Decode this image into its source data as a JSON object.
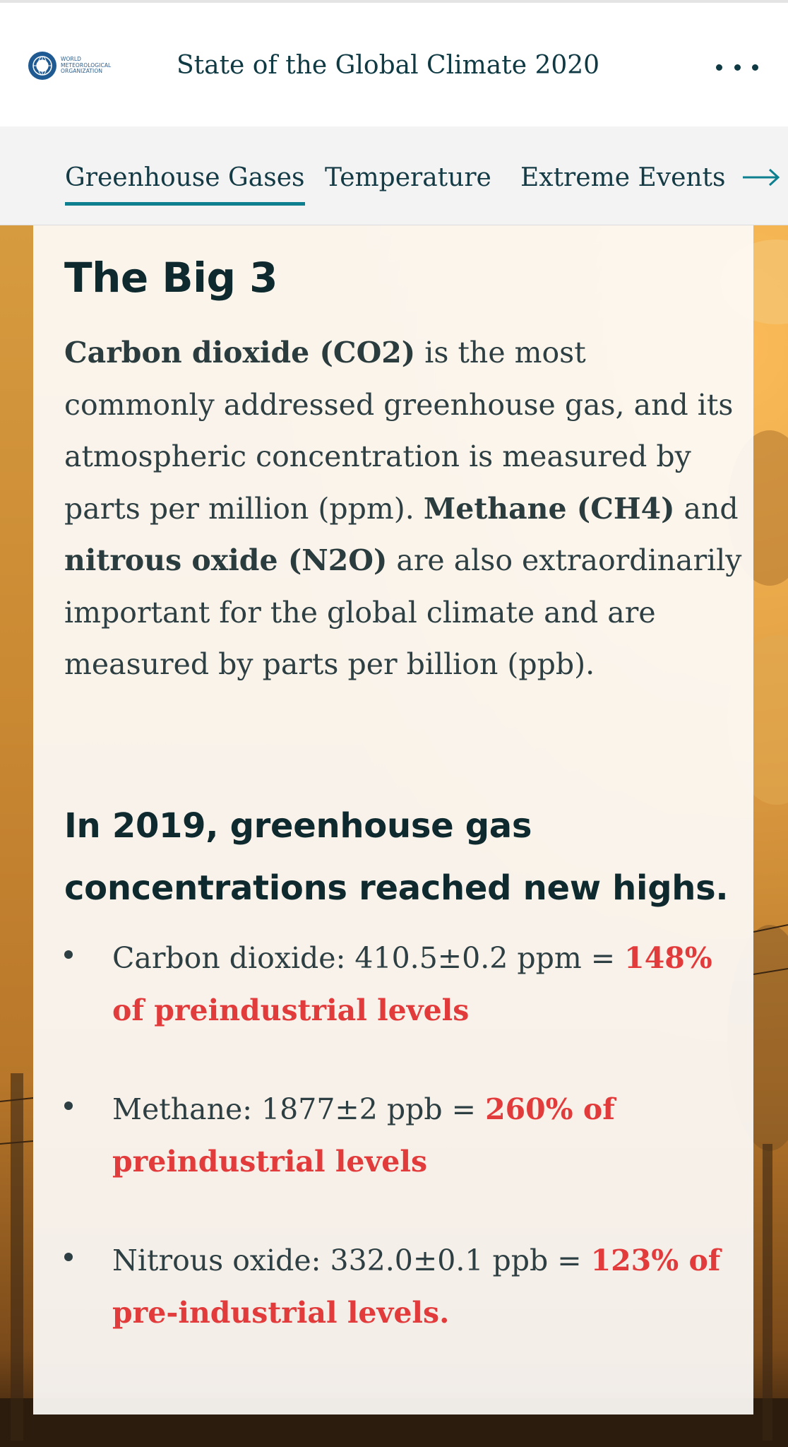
{
  "header": {
    "logo_text": "WORLD\nMETEOROLOGICAL\nORGANIZATION",
    "site_title": "State of the Global Climate 2020"
  },
  "tabs": [
    {
      "label": "Greenhouse Gases",
      "active": true
    },
    {
      "label": "Temperature",
      "active": false
    },
    {
      "label": "Extreme Events",
      "active": false
    }
  ],
  "card": {
    "heading": "The Big 3",
    "intro": {
      "co2_term": "Carbon dioxide (CO2)",
      "part1": " is the most commonly addressed greenhouse gas, and its atmospheric concentration is measured by parts per million (ppm). ",
      "ch4_term": "Methane (CH4)",
      "part2": " and ",
      "n2o_term": "nitrous oxide (N2O)",
      "part3": " are also extraordinarily important for the global climate and are measured by parts per billion (ppb)."
    },
    "subheading": "In 2019, greenhouse gas concentrations reached new highs.",
    "stats": [
      {
        "text": "Carbon dioxide: 410.5±0.2 ppm = ",
        "highlight": "148% of preindustrial levels"
      },
      {
        "text": "Methane: 1877±2 ppb = ",
        "highlight": "260% of preindustrial levels"
      },
      {
        "text": "Nitrous oxide: 332.0±0.1 ppb = ",
        "highlight": "123% of pre-industrial levels."
      }
    ]
  },
  "colors": {
    "accent": "#0e7f8f",
    "highlight": "#e23b3b",
    "title": "#0f3a44"
  },
  "icons": {
    "menu": "more-horizontal-icon",
    "next": "arrow-right-icon",
    "logo": "wmo-emblem-icon"
  }
}
